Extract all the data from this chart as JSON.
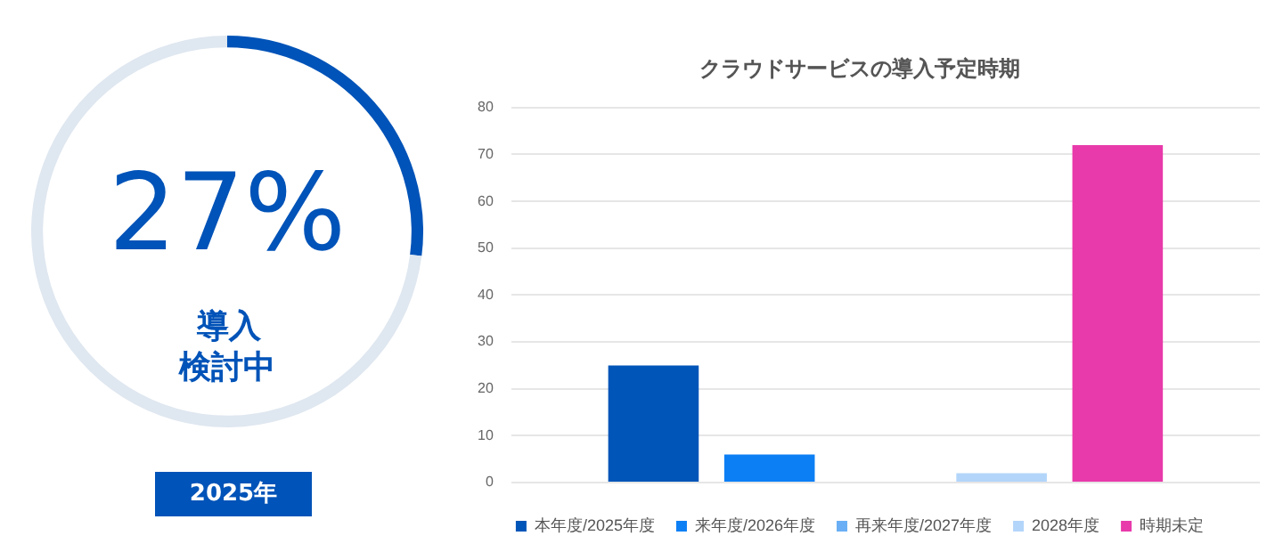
{
  "chart_data": [
    {
      "type": "donut",
      "categories": [
        null,
        null
      ],
      "values": [
        27,
        73
      ],
      "colors": [
        "#0053b8",
        "#dfe7f0"
      ],
      "value_labels": [
        "27%",
        null
      ],
      "annotations": [
        "導入検討中",
        "2025年"
      ],
      "legend": false
    },
    {
      "type": "bar",
      "title": "クラウドサービスの導入予定時期",
      "categories": [
        null
      ],
      "series": [
        {
          "name": "本年度/2025年度",
          "color": "#0055b8",
          "values": [
            25
          ]
        },
        {
          "name": "来年度/2026年度",
          "color": "#0d7ff5",
          "values": [
            6
          ]
        },
        {
          "name": "再来年度/2027年度",
          "color": "#6aaff5",
          "values": [
            0
          ]
        },
        {
          "name": "2028年度",
          "color": "#b3d5fa",
          "values": [
            2
          ]
        },
        {
          "name": "時期未定",
          "color": "#e83aaa",
          "values": [
            72
          ]
        }
      ],
      "ylim": [
        0,
        80
      ],
      "yticks": [
        0,
        10,
        20,
        30,
        40,
        50,
        60,
        70,
        80
      ],
      "grid": "y",
      "legend": "bottom"
    }
  ]
}
